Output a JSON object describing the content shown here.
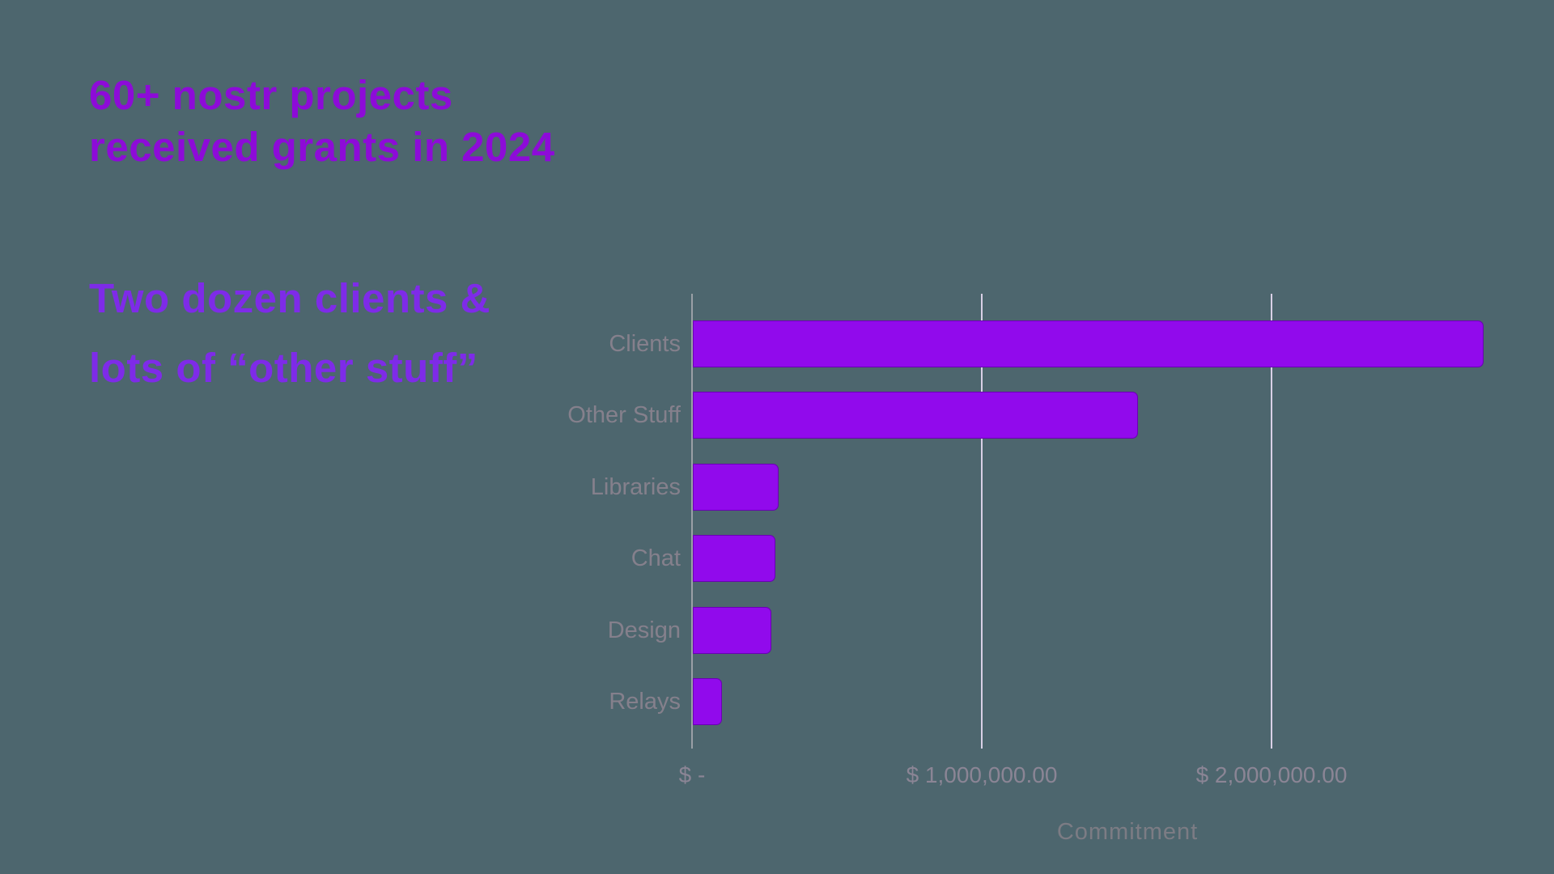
{
  "background_color": "#4d666e",
  "headline": {
    "line1": "60+ nostr projects",
    "line2": "received grants in 2024",
    "color": "#8d0bd8"
  },
  "subheadline": {
    "line1": "Two dozen clients &",
    "line2": "lots of “other stuff”",
    "color": "#7e2be8"
  },
  "chart_data": {
    "type": "bar",
    "orientation": "horizontal",
    "categories": [
      "Clients",
      "Other Stuff",
      "Libraries",
      "Chat",
      "Design",
      "Relays"
    ],
    "values": [
      2730000,
      1535000,
      295000,
      285000,
      270000,
      100000
    ],
    "value_unit": "USD",
    "title": "",
    "xlabel": "Commitment",
    "ylabel": "",
    "xlim": [
      0,
      2800000
    ],
    "x_ticks": [
      {
        "value": 0,
        "label": "$ -"
      },
      {
        "value": 1000000,
        "label": "$ 1,000,000.00"
      },
      {
        "value": 2000000,
        "label": "$ 2,000,000.00"
      }
    ],
    "grid": "vertical",
    "legend_visible": false,
    "colors": {
      "bar_fill": "#910aec",
      "bar_border": "#6a00b4",
      "axis_line": "#9aa0a6",
      "gridline": "#d9d0e6",
      "category_label": "#85808c",
      "tick_label": "#8b8595",
      "xlabel": "#7c7c84"
    }
  }
}
